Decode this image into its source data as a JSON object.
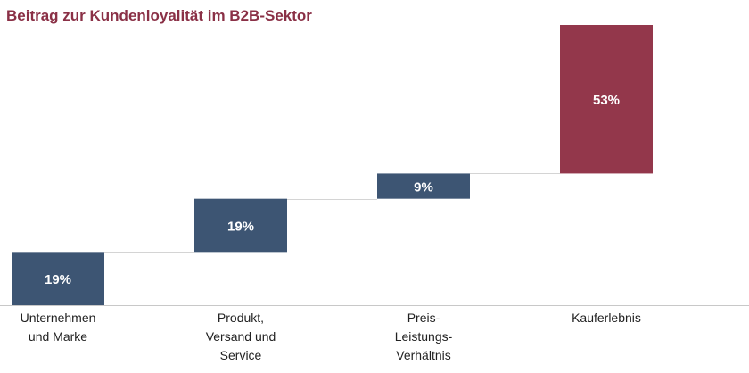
{
  "chart_data": {
    "type": "waterfall",
    "title": "Beitrag zur Kundenloyalität im B2B-Sektor",
    "categories": [
      [
        "Unternehmen",
        "und Marke"
      ],
      [
        "Produkt,",
        "Versand und",
        "Service"
      ],
      [
        "Preis-",
        "Leistungs-",
        "Verhältnis"
      ],
      [
        "Kauferlebnis"
      ]
    ],
    "values": [
      19,
      19,
      9,
      53
    ],
    "value_labels": [
      "19%",
      "19%",
      "9%",
      "53%"
    ],
    "unit": "%",
    "ylim": [
      0,
      100
    ],
    "grid": false,
    "legend": false,
    "xlabel": "",
    "ylabel": ""
  },
  "colors": {
    "title": "#8a3046",
    "bar": "#3d5573",
    "highlight": "#93374b",
    "connector": "#d4d4d4",
    "axis": "#c8c8c8",
    "bar_label": "#ffffff"
  },
  "highlight_index": 3
}
